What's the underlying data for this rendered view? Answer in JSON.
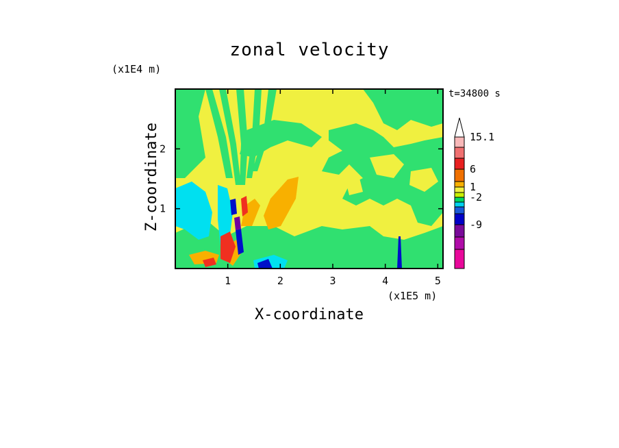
{
  "chart_data": {
    "type": "heatmap",
    "title": "zonal velocity",
    "xlabel": "X-coordinate",
    "ylabel": "Z-coordinate",
    "x_unit": "(x1E5 m)",
    "y_unit": "(x1E4 m)",
    "time_label": "t=34800 s",
    "x_ticks": [
      1,
      2,
      3,
      4,
      5
    ],
    "y_ticks": [
      1,
      2
    ],
    "xlim": [
      0,
      5.1
    ],
    "ylim": [
      0,
      3.0
    ],
    "colorbar": {
      "labels": [
        "15.1",
        "6",
        "1",
        "-2",
        "-9"
      ],
      "level_colors": [
        "#e8089a",
        "#b00ca8",
        "#7a0a9a",
        "#0000c8",
        "#1a5ad8",
        "#00d2f0",
        "#00d860",
        "#c8f000",
        "#f0f040",
        "#f8b000",
        "#f07000",
        "#e82020",
        "#f07070",
        "#f8b8b8"
      ],
      "extend_max_color": "#ffffff"
    },
    "palette": {
      "yellow": "#f0f040",
      "green": "#30e070",
      "cyan": "#00e0f0",
      "blue": "#0010c8",
      "orange": "#f8b000",
      "red": "#f03020",
      "purple": "#7000a0"
    }
  }
}
